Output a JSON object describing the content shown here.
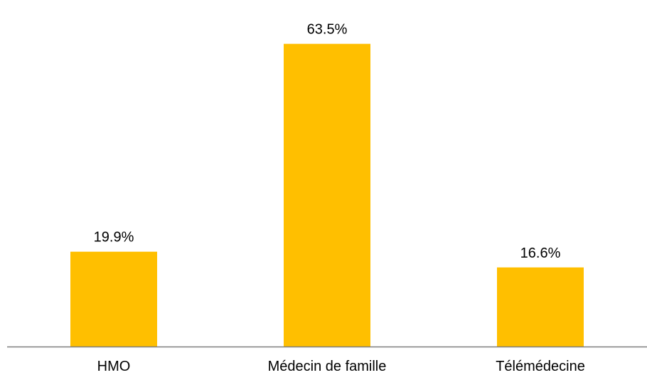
{
  "chart_data": {
    "type": "bar",
    "categories": [
      "HMO",
      "Médecin de famille",
      "Télémédecine"
    ],
    "values": [
      19.9,
      63.5,
      16.6
    ],
    "value_labels": [
      "19.9%",
      "63.5%",
      "16.6%"
    ],
    "title": "",
    "xlabel": "",
    "ylabel": "",
    "ylim": [
      0,
      70
    ],
    "y_axis_shown": false,
    "grid": false,
    "legend": "none",
    "bar_color": "#FFBF00",
    "axis_color": "#7F7F7F"
  }
}
